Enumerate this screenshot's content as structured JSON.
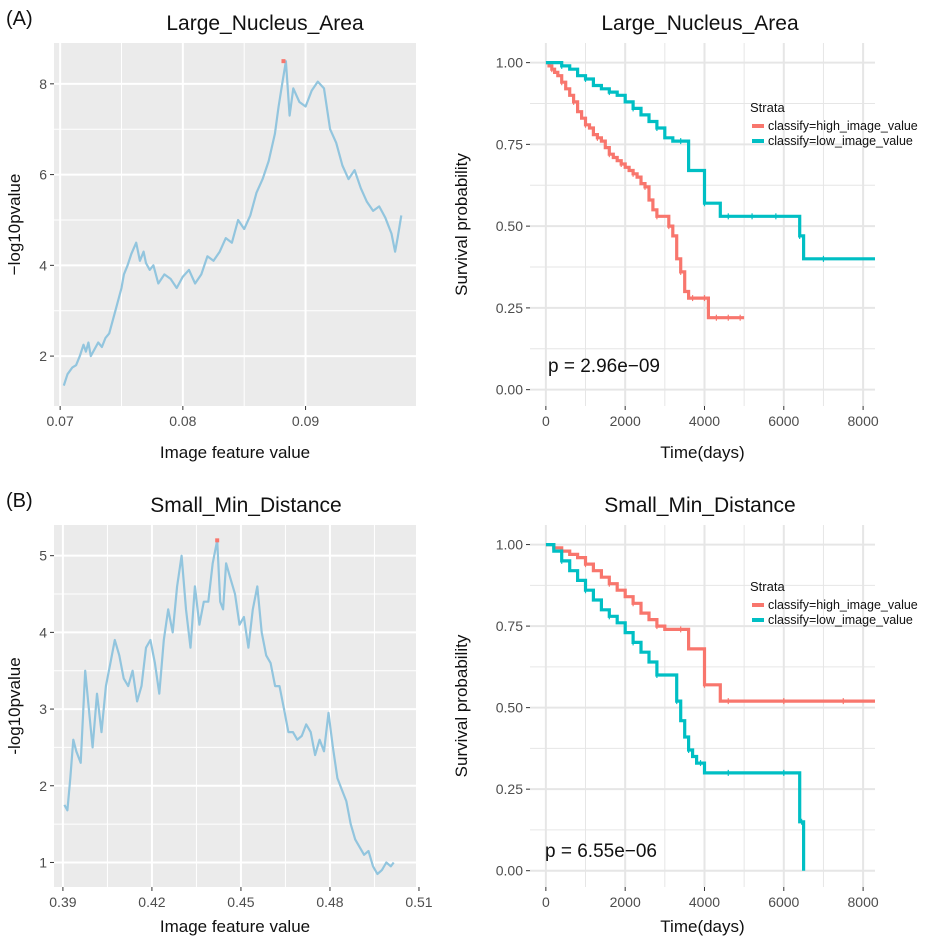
{
  "panel_labels": [
    "(A)",
    "(B)"
  ],
  "colors": {
    "panel_bg": "#ebebeb",
    "grid": "#ffffff",
    "scan_line": "#92c5de",
    "scan_max": "#f8766d",
    "high_image_value": "#f8766d",
    "low_image_value": "#00bfc4",
    "axis_text": "#4d4d4d"
  },
  "chart_data": [
    {
      "id": "A-scan",
      "type": "line",
      "title": "Large_Nucleus_Area",
      "xlabel": "Image feature value",
      "ylabel": "−log10pvalue",
      "xlim": [
        0.0695,
        0.099
      ],
      "ylim": [
        0.9,
        8.9
      ],
      "x_ticks": [
        0.07,
        0.08,
        0.09
      ],
      "x_tick_labels": [
        "0.07",
        "0.08",
        "0.09"
      ],
      "y_ticks": [
        2,
        4,
        6,
        8
      ],
      "y_tick_labels": [
        "2",
        "4",
        "6",
        "8"
      ],
      "grid": true,
      "series": [
        {
          "x": [
            0.0703,
            0.0706,
            0.071,
            0.0713,
            0.0716,
            0.0719,
            0.0721,
            0.0723,
            0.0725,
            0.0728,
            0.0731,
            0.0734,
            0.0737,
            0.074,
            0.0745,
            0.075,
            0.0752,
            0.0755,
            0.0758,
            0.0762,
            0.0765,
            0.0768,
            0.077,
            0.0773,
            0.0776,
            0.078,
            0.0785,
            0.079,
            0.0795,
            0.08,
            0.0805,
            0.081,
            0.0815,
            0.082,
            0.0825,
            0.083,
            0.0835,
            0.084,
            0.0845,
            0.085,
            0.0855,
            0.086,
            0.0865,
            0.087,
            0.0875,
            0.0878,
            0.0881,
            0.0884,
            0.0887,
            0.089,
            0.0895,
            0.09,
            0.0905,
            0.091,
            0.0915,
            0.092,
            0.0925,
            0.093,
            0.0935,
            0.094,
            0.0945,
            0.095,
            0.0955,
            0.096,
            0.0965,
            0.097,
            0.0973,
            0.0975,
            0.0978
          ],
          "y": [
            1.35,
            1.6,
            1.75,
            1.8,
            2.0,
            2.25,
            2.1,
            2.3,
            2.0,
            2.15,
            2.3,
            2.2,
            2.4,
            2.5,
            3.0,
            3.5,
            3.8,
            4.0,
            4.25,
            4.5,
            4.1,
            4.3,
            4.05,
            3.9,
            4.0,
            3.6,
            3.8,
            3.7,
            3.5,
            3.75,
            3.9,
            3.6,
            3.8,
            4.2,
            4.1,
            4.3,
            4.6,
            4.5,
            5.0,
            4.8,
            5.1,
            5.6,
            5.9,
            6.3,
            6.9,
            7.5,
            8.0,
            8.5,
            7.3,
            7.9,
            7.6,
            7.5,
            7.85,
            8.05,
            7.9,
            7.0,
            6.7,
            6.2,
            5.9,
            6.1,
            5.7,
            5.4,
            5.2,
            5.3,
            5.05,
            4.7,
            4.3,
            4.6,
            5.1
          ]
        }
      ],
      "max_marker": {
        "x": 0.0882,
        "y": 8.5
      }
    },
    {
      "id": "A-km",
      "type": "line",
      "title": "Large_Nucleus_Area",
      "xlabel": "Time(days)",
      "ylabel": "Survival probability",
      "xlim": [
        -400,
        8300
      ],
      "ylim": [
        -0.05,
        1.06
      ],
      "x_ticks": [
        0,
        2000,
        4000,
        6000,
        8000
      ],
      "x_tick_labels": [
        "0",
        "2000",
        "4000",
        "6000",
        "8000"
      ],
      "y_ticks": [
        0,
        0.25,
        0.5,
        0.75,
        1
      ],
      "y_tick_labels": [
        "0.00",
        "0.25",
        "0.50",
        "0.75",
        "1.00"
      ],
      "grid": true,
      "legend_title": "Strata",
      "legend_placement": "top-right",
      "annotation": "p = 2.96e−09",
      "series": [
        {
          "name": "classify=high_image_value",
          "x": [
            0,
            80,
            150,
            220,
            300,
            400,
            500,
            600,
            700,
            800,
            900,
            1000,
            1100,
            1200,
            1300,
            1400,
            1500,
            1600,
            1700,
            1800,
            1900,
            2000,
            2100,
            2200,
            2300,
            2400,
            2500,
            2600,
            2700,
            2800,
            2900,
            3000,
            3100,
            3200,
            3300,
            3400,
            3500,
            3600,
            3700,
            3800,
            3900,
            4000,
            4100,
            4200,
            4300,
            4400,
            4500,
            4600,
            4700,
            4800,
            4900,
            5000
          ],
          "y": [
            1.0,
            0.99,
            0.98,
            0.97,
            0.96,
            0.94,
            0.92,
            0.9,
            0.88,
            0.85,
            0.83,
            0.81,
            0.8,
            0.78,
            0.77,
            0.76,
            0.74,
            0.72,
            0.71,
            0.7,
            0.69,
            0.68,
            0.67,
            0.66,
            0.65,
            0.63,
            0.62,
            0.58,
            0.55,
            0.53,
            0.53,
            0.53,
            0.5,
            0.47,
            0.4,
            0.36,
            0.3,
            0.28,
            0.28,
            0.28,
            0.28,
            0.28,
            0.22,
            0.22,
            0.22,
            0.22,
            0.22,
            0.22,
            0.22,
            0.22,
            0.22,
            0.22
          ]
        },
        {
          "name": "classify=low_image_value",
          "x": [
            0,
            200,
            400,
            600,
            800,
            1000,
            1200,
            1400,
            1600,
            1800,
            2000,
            2200,
            2400,
            2600,
            2800,
            3000,
            3200,
            3400,
            3600,
            3800,
            4000,
            4200,
            4400,
            4600,
            4800,
            5000,
            5200,
            5400,
            5600,
            5800,
            6000,
            6200,
            6400,
            6500,
            6700,
            7000,
            7500,
            8000,
            8300
          ],
          "y": [
            1.0,
            1.0,
            0.99,
            0.98,
            0.96,
            0.95,
            0.93,
            0.92,
            0.91,
            0.9,
            0.88,
            0.86,
            0.84,
            0.82,
            0.8,
            0.77,
            0.76,
            0.76,
            0.67,
            0.67,
            0.57,
            0.57,
            0.53,
            0.53,
            0.53,
            0.53,
            0.53,
            0.53,
            0.53,
            0.53,
            0.53,
            0.53,
            0.47,
            0.4,
            0.4,
            0.4,
            0.4,
            0.4,
            0.4
          ]
        }
      ]
    },
    {
      "id": "B-scan",
      "type": "line",
      "title": "Small_Min_Distance",
      "xlabel": "Image feature value",
      "ylabel": "-log10pvalue",
      "xlim": [
        0.387,
        0.509
      ],
      "ylim": [
        0.68,
        5.4
      ],
      "x_ticks": [
        0.39,
        0.42,
        0.45,
        0.48,
        0.51
      ],
      "x_tick_labels": [
        "0.39",
        "0.42",
        "0.45",
        "0.48",
        "0.51"
      ],
      "y_ticks": [
        1,
        2,
        3,
        4,
        5
      ],
      "y_tick_labels": [
        "1",
        "2",
        "3",
        "4",
        "5"
      ],
      "grid": true,
      "series": [
        {
          "x": [
            0.3905,
            0.3915,
            0.3925,
            0.3935,
            0.3945,
            0.396,
            0.3975,
            0.399,
            0.4,
            0.4015,
            0.403,
            0.4045,
            0.406,
            0.4075,
            0.409,
            0.4105,
            0.412,
            0.4135,
            0.415,
            0.4165,
            0.418,
            0.4195,
            0.421,
            0.4225,
            0.424,
            0.4255,
            0.427,
            0.4285,
            0.43,
            0.4315,
            0.433,
            0.4345,
            0.436,
            0.4375,
            0.439,
            0.4405,
            0.442,
            0.443,
            0.444,
            0.445,
            0.4465,
            0.448,
            0.4495,
            0.451,
            0.4525,
            0.454,
            0.4555,
            0.457,
            0.4585,
            0.46,
            0.4615,
            0.463,
            0.4645,
            0.466,
            0.4675,
            0.469,
            0.4705,
            0.472,
            0.4735,
            0.475,
            0.4765,
            0.478,
            0.4795,
            0.481,
            0.4825,
            0.484,
            0.4855,
            0.487,
            0.4885,
            0.49,
            0.4915,
            0.493,
            0.4945,
            0.496,
            0.4975,
            0.499,
            0.5005,
            0.5015
          ],
          "y": [
            1.75,
            1.68,
            2.1,
            2.6,
            2.45,
            2.3,
            3.5,
            2.9,
            2.5,
            3.2,
            2.7,
            3.3,
            3.6,
            3.9,
            3.7,
            3.4,
            3.3,
            3.5,
            3.1,
            3.3,
            3.8,
            3.9,
            3.6,
            3.2,
            3.9,
            4.3,
            4.0,
            4.6,
            5.0,
            4.3,
            3.8,
            4.6,
            4.1,
            4.4,
            4.4,
            4.9,
            5.2,
            4.4,
            4.3,
            4.9,
            4.7,
            4.5,
            4.1,
            4.2,
            3.8,
            4.3,
            4.6,
            4.0,
            3.7,
            3.6,
            3.3,
            3.3,
            3.0,
            2.7,
            2.7,
            2.6,
            2.65,
            2.8,
            2.7,
            2.4,
            2.6,
            2.45,
            2.95,
            2.5,
            2.1,
            1.95,
            1.8,
            1.5,
            1.3,
            1.2,
            1.1,
            1.15,
            0.95,
            0.85,
            0.9,
            1.0,
            0.95,
            1.0
          ]
        }
      ],
      "max_marker": {
        "x": 0.442,
        "y": 5.2
      }
    },
    {
      "id": "B-km",
      "type": "line",
      "title": "Small_Min_Distance",
      "xlabel": "Time(days)",
      "ylabel": "Survival probability",
      "xlim": [
        -400,
        8300
      ],
      "ylim": [
        -0.05,
        1.06
      ],
      "x_ticks": [
        0,
        2000,
        4000,
        6000,
        8000
      ],
      "x_tick_labels": [
        "0",
        "2000",
        "4000",
        "6000",
        "8000"
      ],
      "y_ticks": [
        0,
        0.25,
        0.5,
        0.75,
        1
      ],
      "y_tick_labels": [
        "0.00",
        "0.25",
        "0.50",
        "0.75",
        "1.00"
      ],
      "grid": true,
      "legend_title": "Strata",
      "legend_placement": "top-right",
      "annotation": "p = 6.55e−06",
      "series": [
        {
          "name": "classify=high_image_value",
          "x": [
            0,
            200,
            400,
            600,
            800,
            1000,
            1200,
            1400,
            1600,
            1800,
            2000,
            2200,
            2400,
            2600,
            2800,
            3000,
            3200,
            3400,
            3600,
            3800,
            4000,
            4200,
            4400,
            4600,
            5000,
            5500,
            6000,
            6500,
            7000,
            7500,
            8000,
            8300
          ],
          "y": [
            1.0,
            0.99,
            0.98,
            0.97,
            0.96,
            0.94,
            0.92,
            0.9,
            0.88,
            0.86,
            0.84,
            0.82,
            0.79,
            0.77,
            0.75,
            0.74,
            0.74,
            0.74,
            0.68,
            0.68,
            0.57,
            0.57,
            0.52,
            0.52,
            0.52,
            0.52,
            0.52,
            0.52,
            0.52,
            0.52,
            0.52,
            0.52
          ]
        },
        {
          "name": "classify=low_image_value",
          "x": [
            0,
            200,
            400,
            600,
            800,
            1000,
            1200,
            1400,
            1600,
            1800,
            2000,
            2200,
            2400,
            2600,
            2800,
            3000,
            3200,
            3300,
            3400,
            3500,
            3600,
            3700,
            3800,
            3900,
            4000,
            4200,
            4600,
            5000,
            5500,
            6000,
            6300,
            6400,
            6450,
            6500
          ],
          "y": [
            1.0,
            0.98,
            0.95,
            0.92,
            0.89,
            0.86,
            0.83,
            0.8,
            0.78,
            0.76,
            0.73,
            0.7,
            0.67,
            0.64,
            0.6,
            0.6,
            0.6,
            0.52,
            0.46,
            0.41,
            0.37,
            0.35,
            0.33,
            0.33,
            0.3,
            0.3,
            0.3,
            0.3,
            0.3,
            0.3,
            0.3,
            0.15,
            0.15,
            0.0
          ]
        }
      ]
    }
  ]
}
